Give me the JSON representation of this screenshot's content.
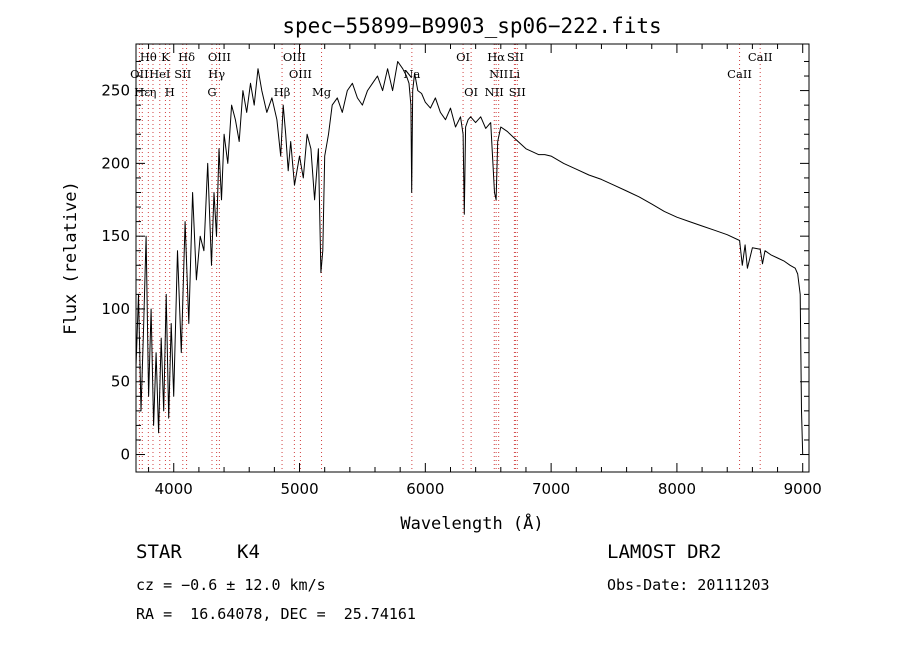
{
  "chart_data": {
    "type": "line",
    "title": "spec−55899−B9903_sp06−222.fits",
    "xlabel": "Wavelength (Å)",
    "ylabel": "Flux (relative)",
    "xlim": [
      3700,
      9050
    ],
    "ylim": [
      -12,
      282
    ],
    "xticks": [
      4000,
      5000,
      6000,
      7000,
      8000,
      9000
    ],
    "yticks": [
      0,
      50,
      100,
      150,
      200,
      250
    ],
    "grid": false,
    "series": [
      {
        "x": [
          3700,
          3720,
          3740,
          3760,
          3780,
          3800,
          3820,
          3840,
          3860,
          3880,
          3900,
          3920,
          3940,
          3960,
          3980,
          4000,
          4030,
          4060,
          4090,
          4120,
          4150,
          4180,
          4210,
          4240,
          4270,
          4300,
          4320,
          4340,
          4360,
          4380,
          4400,
          4430,
          4460,
          4490,
          4520,
          4550,
          4580,
          4610,
          4640,
          4670,
          4700,
          4740,
          4780,
          4820,
          4850,
          4870,
          4890,
          4910,
          4930,
          4960,
          5000,
          5030,
          5060,
          5090,
          5120,
          5150,
          5170,
          5185,
          5200,
          5230,
          5260,
          5300,
          5340,
          5380,
          5420,
          5460,
          5500,
          5540,
          5580,
          5620,
          5660,
          5700,
          5740,
          5780,
          5820,
          5850,
          5870,
          5885,
          5892,
          5900,
          5915,
          5940,
          5970,
          6000,
          6040,
          6080,
          6120,
          6160,
          6200,
          6240,
          6280,
          6300,
          6310,
          6320,
          6340,
          6360,
          6400,
          6440,
          6480,
          6520,
          6550,
          6563,
          6575,
          6600,
          6650,
          6700,
          6750,
          6800,
          6850,
          6900,
          6950,
          7000,
          7100,
          7200,
          7300,
          7400,
          7500,
          7600,
          7700,
          7800,
          7900,
          8000,
          8100,
          8200,
          8300,
          8400,
          8498,
          8520,
          8542,
          8560,
          8600,
          8662,
          8680,
          8700,
          8750,
          8800,
          8850,
          8900,
          8940,
          8960,
          8980,
          8990,
          9000
        ],
        "y": [
          60,
          110,
          30,
          85,
          150,
          40,
          100,
          20,
          70,
          15,
          80,
          30,
          110,
          25,
          90,
          40,
          140,
          70,
          160,
          90,
          180,
          120,
          150,
          140,
          200,
          130,
          180,
          150,
          210,
          175,
          220,
          200,
          240,
          230,
          215,
          250,
          235,
          255,
          240,
          265,
          250,
          235,
          245,
          230,
          205,
          240,
          220,
          195,
          215,
          185,
          205,
          190,
          220,
          210,
          175,
          210,
          125,
          140,
          205,
          220,
          240,
          245,
          235,
          250,
          255,
          245,
          240,
          250,
          255,
          260,
          250,
          265,
          250,
          270,
          265,
          260,
          255,
          240,
          180,
          250,
          262,
          250,
          248,
          242,
          238,
          245,
          235,
          230,
          238,
          225,
          232,
          220,
          165,
          225,
          230,
          232,
          228,
          232,
          224,
          228,
          180,
          175,
          215,
          225,
          222,
          218,
          214,
          210,
          208,
          206,
          206,
          205,
          200,
          196,
          192,
          189,
          185,
          181,
          177,
          172,
          167,
          163,
          160,
          157,
          154,
          151,
          147,
          130,
          144,
          128,
          142,
          141,
          131,
          140,
          137,
          135,
          133,
          130,
          128,
          124,
          110,
          30,
          0
        ]
      }
    ],
    "lines": [
      {
        "name": "Hθ",
        "x": 3798,
        "row": 0
      },
      {
        "name": "K",
        "x": 3934,
        "row": 0
      },
      {
        "name": "Hδ",
        "x": 4102,
        "row": 0
      },
      {
        "name": "OIII",
        "x": 4363,
        "row": 0
      },
      {
        "name": "OIII",
        "x": 4959,
        "row": 0
      },
      {
        "name": "OI",
        "x": 6300,
        "row": 0
      },
      {
        "name": "Hα",
        "x": 6563,
        "row": 0
      },
      {
        "name": "SII",
        "x": 6716,
        "row": 0
      },
      {
        "name": "CaII",
        "x": 8662,
        "row": 0
      },
      {
        "name": "OII",
        "x": 3727,
        "row": 1
      },
      {
        "name": "HeI",
        "x": 3889,
        "row": 1
      },
      {
        "name": "SII",
        "x": 4072,
        "row": 1
      },
      {
        "name": "Hγ",
        "x": 4341,
        "row": 1
      },
      {
        "name": "OIII",
        "x": 5007,
        "row": 1
      },
      {
        "name": "Na",
        "x": 5893,
        "row": 1
      },
      {
        "name": "NII",
        "x": 6583,
        "row": 1
      },
      {
        "name": "Li",
        "x": 6708,
        "row": 1
      },
      {
        "name": "CaII",
        "x": 8498,
        "row": 1
      },
      {
        "name": "Hε",
        "x": 3750,
        "row": 2
      },
      {
        "name": "η",
        "x": 3835,
        "row": 2
      },
      {
        "name": "H",
        "x": 3968,
        "row": 2
      },
      {
        "name": "G",
        "x": 4304,
        "row": 2
      },
      {
        "name": "Hβ",
        "x": 4861,
        "row": 2
      },
      {
        "name": "Mg",
        "x": 5175,
        "row": 2
      },
      {
        "name": "OI",
        "x": 6364,
        "row": 2
      },
      {
        "name": "NII",
        "x": 6548,
        "row": 2
      },
      {
        "name": "SII",
        "x": 6731,
        "row": 2
      }
    ]
  },
  "info": {
    "class": "STAR",
    "subclass": "K4",
    "survey": "LAMOST DR2",
    "cz": "cz = −0.6 ± 12.0 km/s",
    "obs_date": "Obs-Date: 20111203",
    "coords": "RA =  16.64078, DEC =  25.74161"
  },
  "colors": {
    "spectrum": "#000000",
    "line_marker": "#d04040"
  }
}
